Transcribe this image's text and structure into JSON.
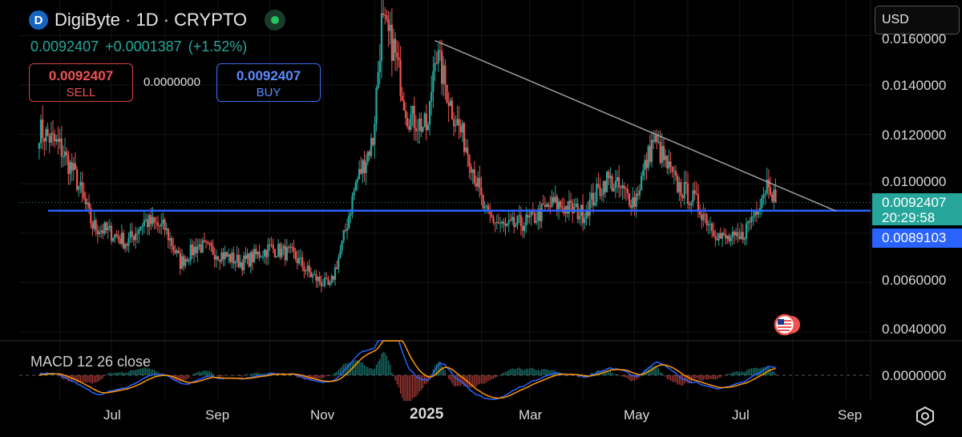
{
  "header": {
    "title": "DigiByte · 1D · CRYPTO",
    "logo_text": "D",
    "last_price": "0.0092407",
    "change": "+0.0001387",
    "change_pct": "(+1.52%)"
  },
  "trade": {
    "sell_price": "0.0092407",
    "sell_label": "SELL",
    "spread": "0.0000000",
    "buy_price": "0.0092407",
    "buy_label": "BUY"
  },
  "currency": {
    "selected": "USD"
  },
  "indicator": {
    "label": "MACD 12 26 close"
  },
  "axis": {
    "y_ticks": [
      "0.0160000",
      "0.0140000",
      "0.0120000",
      "0.0100000",
      "0.0060000",
      "0.0040000"
    ],
    "macd_tick": "0.0000000",
    "x_ticks": [
      "Jul",
      "Sep",
      "Nov",
      "2025",
      "Mar",
      "May",
      "Jul",
      "Sep"
    ]
  },
  "tags": {
    "last_price": "0.0092407",
    "countdown": "20:29:58",
    "hline_price": "0.0089103"
  },
  "colors": {
    "up": "#26a69a",
    "down": "#ef5350",
    "hline": "#2962ff",
    "trendline": "#9e9e9e",
    "macd": "#2962ff",
    "signal": "#ff9800"
  },
  "chart_data": {
    "type": "candlestick",
    "title": "DigiByte · 1D · CRYPTO",
    "ylim": [
      0.0035,
      0.017
    ],
    "x_ticks": [
      "Jul",
      "Sep",
      "Nov",
      "2025",
      "Mar",
      "May",
      "Jul",
      "Sep"
    ],
    "close_approx": [
      [
        "2024-05-20",
        0.0122
      ],
      [
        "2024-06-01",
        0.0115
      ],
      [
        "2024-06-10",
        0.0103
      ],
      [
        "2024-06-20",
        0.0083
      ],
      [
        "2024-07-01",
        0.008
      ],
      [
        "2024-07-10",
        0.0076
      ],
      [
        "2024-07-20",
        0.0085
      ],
      [
        "2024-08-01",
        0.0082
      ],
      [
        "2024-08-10",
        0.0068
      ],
      [
        "2024-08-20",
        0.0075
      ],
      [
        "2024-09-01",
        0.0072
      ],
      [
        "2024-09-15",
        0.0068
      ],
      [
        "2024-10-01",
        0.0074
      ],
      [
        "2024-10-15",
        0.0071
      ],
      [
        "2024-10-25",
        0.0063
      ],
      [
        "2024-11-05",
        0.0058
      ],
      [
        "2024-11-12",
        0.0075
      ],
      [
        "2024-11-20",
        0.01
      ],
      [
        "2024-11-30",
        0.0118
      ],
      [
        "2024-12-05",
        0.0165
      ],
      [
        "2024-12-12",
        0.0155
      ],
      [
        "2024-12-20",
        0.0128
      ],
      [
        "2025-01-01",
        0.0122
      ],
      [
        "2025-01-05",
        0.0155
      ],
      [
        "2025-01-15",
        0.013
      ],
      [
        "2025-01-25",
        0.0112
      ],
      [
        "2025-02-03",
        0.0088
      ],
      [
        "2025-02-15",
        0.0082
      ],
      [
        "2025-03-01",
        0.0085
      ],
      [
        "2025-03-15",
        0.0092
      ],
      [
        "2025-04-01",
        0.0088
      ],
      [
        "2025-04-15",
        0.0102
      ],
      [
        "2025-05-01",
        0.0093
      ],
      [
        "2025-05-12",
        0.0118
      ],
      [
        "2025-05-25",
        0.01
      ],
      [
        "2025-06-05",
        0.0093
      ],
      [
        "2025-06-20",
        0.0078
      ],
      [
        "2025-07-01",
        0.0077
      ],
      [
        "2025-07-10",
        0.0089
      ],
      [
        "2025-07-18",
        0.0102
      ],
      [
        "2025-07-22",
        0.0092407
      ]
    ],
    "horizontal_line": 0.0089103,
    "trendline": {
      "from": [
        "2025-01-05",
        0.0158
      ],
      "to": [
        "2025-08-26",
        0.0089
      ]
    },
    "macd": {
      "fast": 12,
      "slow": 26,
      "source": "close"
    }
  }
}
